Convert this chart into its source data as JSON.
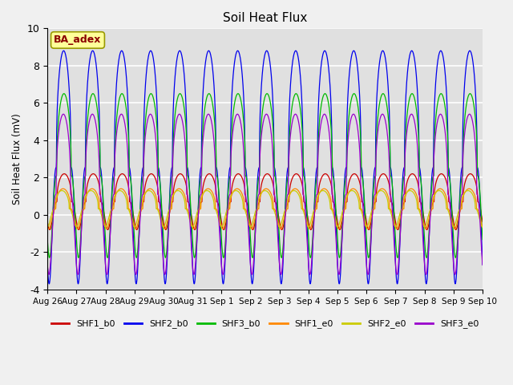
{
  "title": "Soil Heat Flux",
  "ylabel": "Soil Heat Flux (mV)",
  "ylim": [
    -4,
    10
  ],
  "background_color": "#f0f0f0",
  "plot_bg_color": "#e0e0e0",
  "grid_color": "#ffffff",
  "annotation_text": "BA_adex",
  "annotation_bg": "#ffff99",
  "annotation_fg": "#8b0000",
  "series": [
    {
      "name": "SHF1_b0",
      "color": "#cc0000",
      "peak": 2.2,
      "trough": -0.8,
      "phase": 0.42
    },
    {
      "name": "SHF2_b0",
      "color": "#0000ee",
      "peak": 8.8,
      "trough": -3.7,
      "phase": 0.44
    },
    {
      "name": "SHF3_b0",
      "color": "#00bb00",
      "peak": 6.5,
      "trough": -2.3,
      "phase": 0.43
    },
    {
      "name": "SHF1_e0",
      "color": "#ff8800",
      "peak": 1.4,
      "trough": -0.75,
      "phase": 0.46
    },
    {
      "name": "SHF2_e0",
      "color": "#cccc00",
      "peak": 1.3,
      "trough": -0.65,
      "phase": 0.5
    },
    {
      "name": "SHF3_e0",
      "color": "#9900cc",
      "peak": 5.4,
      "trough": -3.2,
      "phase": 0.45
    }
  ],
  "xtick_labels": [
    "Aug 26",
    "Aug 27",
    "Aug 28",
    "Aug 29",
    "Aug 30",
    "Aug 31",
    "Sep 1",
    "Sep 2",
    "Sep 3",
    "Sep 4",
    "Sep 5",
    "Sep 6",
    "Sep 7",
    "Sep 8",
    "Sep 9",
    "Sep 10"
  ],
  "ytick_labels": [
    -4,
    -2,
    0,
    2,
    4,
    6,
    8,
    10
  ]
}
